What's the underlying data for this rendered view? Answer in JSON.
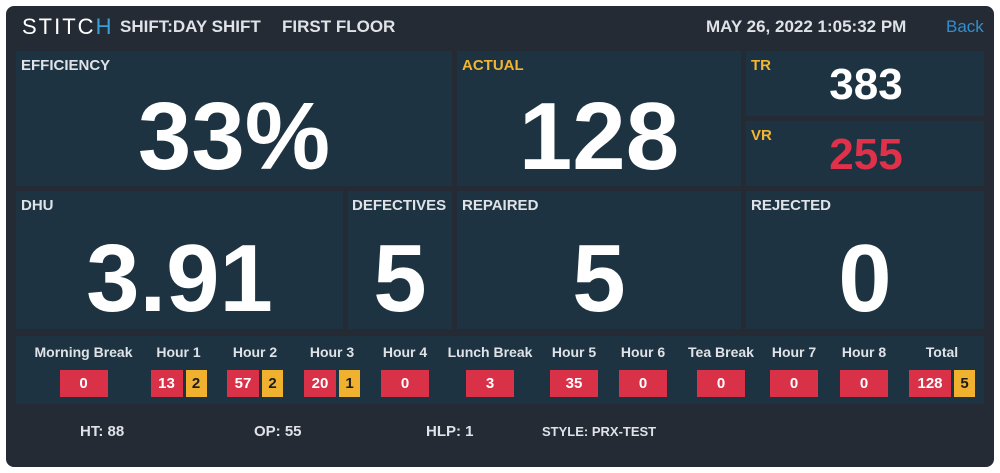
{
  "header": {
    "logo_prefix": "STITC",
    "logo_accent": "H",
    "shift": "SHIFT:DAY SHIFT",
    "floor": "FIRST FLOOR",
    "datetime": "MAY 26, 2022 1:05:32 PM",
    "back_label": "Back"
  },
  "metrics": {
    "efficiency": {
      "label": "EFFICIENCY",
      "value": "33%"
    },
    "actual": {
      "label": "ACTUAL",
      "value": "128"
    },
    "tr": {
      "label": "TR",
      "value": "383"
    },
    "vr": {
      "label": "VR",
      "value": "255"
    },
    "dhu": {
      "label": "DHU",
      "value": "3.91"
    },
    "defectives": {
      "label": "DEFECTIVES",
      "value": "5"
    },
    "repaired": {
      "label": "REPAIRED",
      "value": "5"
    },
    "rejected": {
      "label": "REJECTED",
      "value": "0"
    }
  },
  "hours": [
    {
      "name": "Morning Break",
      "count": "0",
      "defects": ""
    },
    {
      "name": "Hour 1",
      "count": "13",
      "defects": "2"
    },
    {
      "name": "Hour 2",
      "count": "57",
      "defects": "2"
    },
    {
      "name": "Hour 3",
      "count": "20",
      "defects": "1"
    },
    {
      "name": "Hour 4",
      "count": "0",
      "defects": ""
    },
    {
      "name": "Lunch Break",
      "count": "3",
      "defects": ""
    },
    {
      "name": "Hour 5",
      "count": "35",
      "defects": ""
    },
    {
      "name": "Hour 6",
      "count": "0",
      "defects": ""
    },
    {
      "name": "Tea Break",
      "count": "0",
      "defects": ""
    },
    {
      "name": "Hour 7",
      "count": "0",
      "defects": ""
    },
    {
      "name": "Hour 8",
      "count": "0",
      "defects": ""
    },
    {
      "name": "Total",
      "count": "128",
      "defects": "5"
    }
  ],
  "footer": {
    "ht": "HT: 88",
    "op": "OP: 55",
    "hlp": "HLP: 1",
    "style": "STYLE: PRX-TEST"
  },
  "colors": {
    "background": "#252b35",
    "panel": "#1e3341",
    "accent_red": "#d83148",
    "accent_yellow": "#f0b22e",
    "link_blue": "#2f8fd0"
  }
}
